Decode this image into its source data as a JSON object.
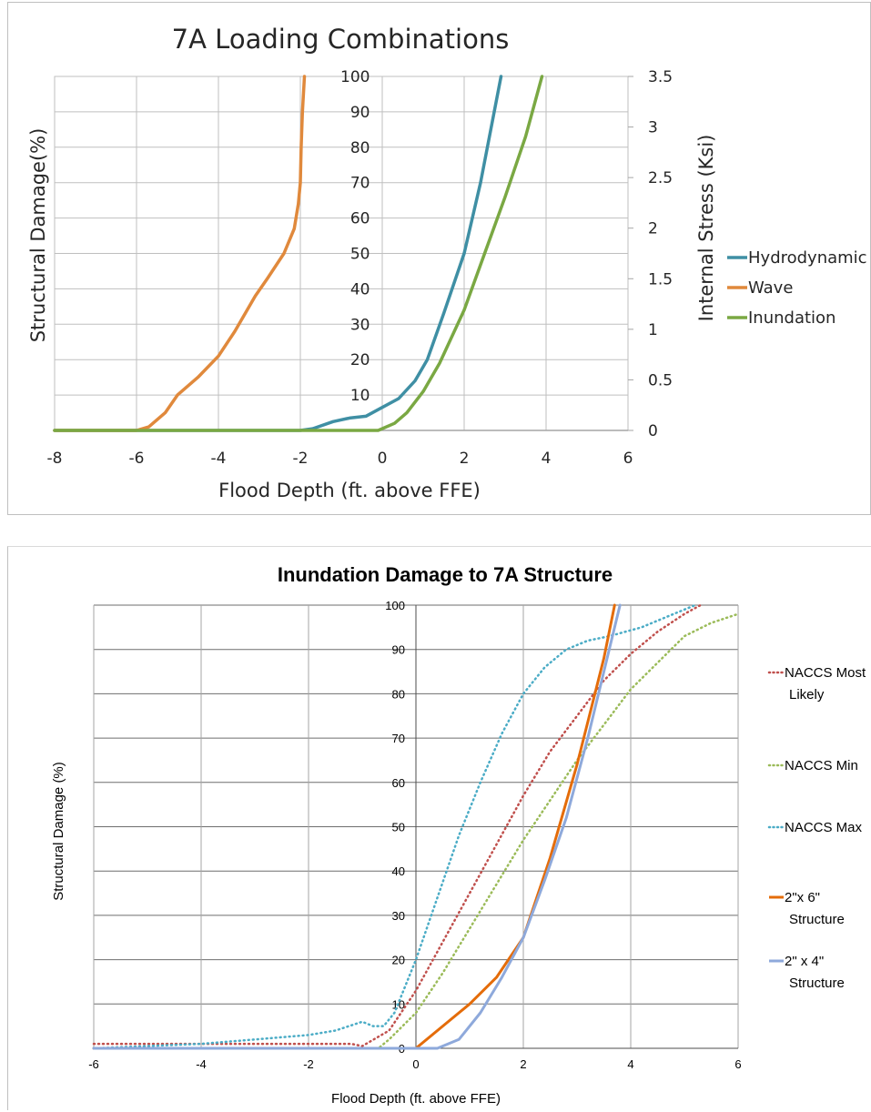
{
  "chart_data": [
    {
      "type": "line",
      "title": "7A Loading Combinations",
      "xlabel": "Flood Depth (ft. above FFE)",
      "ylabel": "Structural Damage(%)",
      "y2label": "Internal Stress (Ksi)",
      "xlim": [
        -8,
        6
      ],
      "ylim": [
        0,
        100
      ],
      "y2lim": [
        0,
        3.5
      ],
      "x_ticks": [
        "-8",
        "-6",
        "-4",
        "-2",
        "0",
        "2",
        "4",
        "6"
      ],
      "y_ticks": [
        "100",
        "90",
        "80",
        "70",
        "60",
        "50",
        "40",
        "30",
        "20",
        "10"
      ],
      "y2_ticks": [
        "3.5",
        "3",
        "2.5",
        "2",
        "1.5",
        "1",
        "0.5",
        "0"
      ],
      "grid": true,
      "legend_position": "right",
      "series": [
        {
          "name": "Hydrodynamic",
          "color": "#3f8fa4",
          "x": [
            -8,
            -2,
            -1.7,
            -1.2,
            -0.8,
            -0.4,
            0,
            0.4,
            0.8,
            1.1,
            1.5,
            2,
            2.4,
            2.9
          ],
          "y": [
            0,
            0,
            0.5,
            2.5,
            3.5,
            4,
            6.5,
            9,
            14,
            20,
            33,
            50,
            70,
            100
          ]
        },
        {
          "name": "Wave",
          "color": "#e0893c",
          "x": [
            -8,
            -6,
            -5.7,
            -5.3,
            -5,
            -4.5,
            -4,
            -3.6,
            -3.1,
            -2.8,
            -2.4,
            -2.15,
            -2.05,
            -2,
            -1.98,
            -1.95,
            -1.9
          ],
          "y": [
            0,
            0,
            1,
            5,
            10,
            15,
            21,
            28,
            38,
            43,
            50,
            57,
            64,
            70,
            80,
            90,
            100
          ]
        },
        {
          "name": "Inundation",
          "color": "#7aa843",
          "x": [
            -8,
            -0.1,
            0.3,
            0.6,
            1,
            1.4,
            2,
            2.5,
            3,
            3.5,
            3.9
          ],
          "y": [
            0,
            0,
            2,
            5,
            11,
            19,
            34,
            50,
            66,
            83,
            100
          ]
        }
      ]
    },
    {
      "type": "line",
      "title": "Inundation Damage to 7A Structure",
      "xlabel": "Flood Depth (ft. above FFE)",
      "ylabel": "Structural Damage (%)",
      "xlim": [
        -6,
        6
      ],
      "ylim": [
        0,
        100
      ],
      "x_ticks": [
        "-6",
        "-4",
        "-2",
        "0",
        "2",
        "4",
        "6"
      ],
      "y_ticks": [
        "100",
        "90",
        "80",
        "70",
        "60",
        "50",
        "40",
        "30",
        "20",
        "10",
        "0"
      ],
      "grid": true,
      "legend_position": "right",
      "series": [
        {
          "name": "NACCS Most Likely",
          "color": "#c0504d",
          "style": "dotted",
          "x": [
            -6,
            -1.2,
            -1,
            -0.5,
            0,
            0.5,
            1,
            1.5,
            2,
            2.5,
            3,
            3.5,
            4,
            4.5,
            5,
            5.3
          ],
          "y": [
            1,
            1,
            0.5,
            4,
            13,
            24,
            35,
            46,
            57,
            67,
            75,
            83,
            89,
            94,
            98,
            100
          ]
        },
        {
          "name": "NACCS Min",
          "color": "#9bbb59",
          "style": "dotted",
          "x": [
            -6,
            -0.7,
            -0.5,
            0,
            0.5,
            1,
            1.5,
            2,
            2.5,
            3,
            3.5,
            4,
            4.5,
            5,
            5.5,
            6
          ],
          "y": [
            0,
            0,
            2,
            8,
            17,
            27,
            37,
            47,
            56,
            65,
            73,
            81,
            87,
            93,
            96,
            98
          ]
        },
        {
          "name": "NACCS Max",
          "color": "#4bacc6",
          "style": "dotted",
          "x": [
            -6,
            -4,
            -3,
            -2,
            -1.5,
            -1,
            -0.8,
            -0.6,
            -0.4,
            0,
            0.4,
            0.8,
            1.2,
            1.6,
            2,
            2.4,
            2.8,
            3.2,
            3.6,
            4.2,
            4.8,
            5.2
          ],
          "y": [
            0,
            1,
            2,
            3,
            4,
            6,
            5,
            5,
            8,
            20,
            34,
            48,
            60,
            71,
            80,
            86,
            90,
            92,
            93,
            95,
            98,
            100
          ]
        },
        {
          "name": "2\"x 6\" Structure",
          "color": "#e46c0a",
          "style": "solid",
          "x": [
            -6,
            0,
            0.5,
            1,
            1.5,
            2,
            2.5,
            3,
            3.5,
            3.7
          ],
          "y": [
            0,
            0,
            5,
            10,
            16,
            25,
            43,
            64,
            88,
            100
          ]
        },
        {
          "name": "2\" x 4\" Structure",
          "color": "#8ea9db",
          "style": "solid",
          "x": [
            -6,
            0.4,
            0.8,
            1.2,
            1.6,
            2,
            2.4,
            2.8,
            3.2,
            3.6,
            3.8
          ],
          "y": [
            0,
            0,
            2,
            8,
            16,
            25,
            38,
            52,
            70,
            90,
            100
          ]
        }
      ]
    }
  ]
}
